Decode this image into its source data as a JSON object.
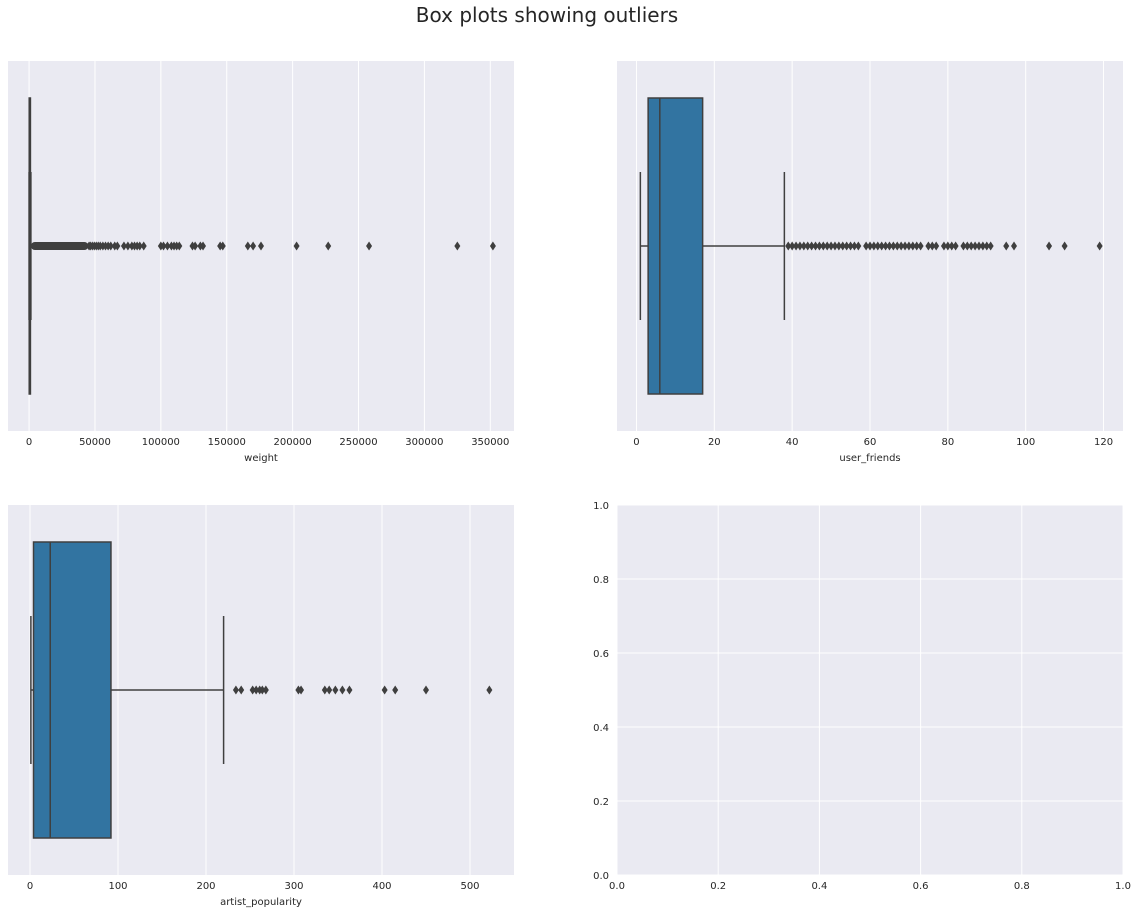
{
  "suptitle": "Box plots showing outliers",
  "colors": {
    "panel": "#eaeaf2",
    "grid": "#ffffff",
    "box": "#3274a1",
    "line": "#3f3f3f"
  },
  "chart_data": [
    {
      "type": "box",
      "xlabel": "weight",
      "xlim": [
        -16000,
        368000
      ],
      "xticks": [
        0,
        50000,
        100000,
        150000,
        200000,
        250000,
        300000,
        350000
      ],
      "xtick_labels": [
        "0",
        "50000",
        "100000",
        "150000",
        "200000",
        "250000",
        "300000",
        "350000"
      ],
      "box": {
        "q1": 107,
        "median": 260,
        "q3": 614,
        "whisker_low": 1,
        "whisker_high": 1375
      },
      "outlier_band": [
        1375,
        45000
      ],
      "outliers": [
        45500,
        46500,
        48000,
        49500,
        51000,
        52500,
        54000,
        56000,
        58000,
        60000,
        62000,
        65000,
        67000,
        72000,
        75000,
        78000,
        80000,
        82000,
        84000,
        87000,
        100000,
        102000,
        105000,
        108000,
        110000,
        112000,
        114000,
        124000,
        126000,
        130000,
        132000,
        145000,
        147000,
        166000,
        170000,
        176000,
        203000,
        227000,
        258000,
        325000,
        352000
      ]
    },
    {
      "type": "box",
      "xlabel": "user_friends",
      "xlim": [
        -5,
        125
      ],
      "xticks": [
        0,
        20,
        40,
        60,
        80,
        100,
        120
      ],
      "xtick_labels": [
        "0",
        "20",
        "40",
        "60",
        "80",
        "100",
        "120"
      ],
      "box": {
        "q1": 3,
        "median": 6,
        "q3": 17,
        "whisker_low": 1,
        "whisker_high": 38
      },
      "outliers": [
        39,
        40,
        41,
        42,
        43,
        44,
        45,
        46,
        47,
        48,
        49,
        50,
        51,
        52,
        53,
        54,
        55,
        56,
        57,
        59,
        60,
        61,
        62,
        63,
        64,
        65,
        66,
        67,
        68,
        69,
        70,
        71,
        72,
        73,
        75,
        76,
        77,
        79,
        80,
        81,
        82,
        84,
        85,
        86,
        87,
        88,
        89,
        90,
        91,
        95,
        97,
        106,
        110,
        119
      ]
    },
    {
      "type": "box",
      "xlabel": "artist_popularity",
      "xlim": [
        -25,
        550
      ],
      "xticks": [
        0,
        100,
        200,
        300,
        400,
        500
      ],
      "xtick_labels": [
        "0",
        "100",
        "200",
        "300",
        "400",
        "500"
      ],
      "box": {
        "q1": 4,
        "median": 23,
        "q3": 92,
        "whisker_low": 1,
        "whisker_high": 220
      },
      "outliers": [
        234,
        240,
        253,
        257,
        261,
        264,
        268,
        305,
        308,
        335,
        340,
        347,
        355,
        363,
        403,
        415,
        450,
        522
      ]
    },
    {
      "type": "empty",
      "xlim": [
        0,
        1
      ],
      "ylim": [
        0,
        1
      ],
      "xticks": [
        0.0,
        0.2,
        0.4,
        0.6,
        0.8,
        1.0
      ],
      "xtick_labels": [
        "0.0",
        "0.2",
        "0.4",
        "0.6",
        "0.8",
        "1.0"
      ],
      "yticks": [
        0.0,
        0.2,
        0.4,
        0.6,
        0.8,
        1.0
      ],
      "ytick_labels": [
        "0.0",
        "0.2",
        "0.4",
        "0.6",
        "0.8",
        "1.0"
      ]
    }
  ]
}
